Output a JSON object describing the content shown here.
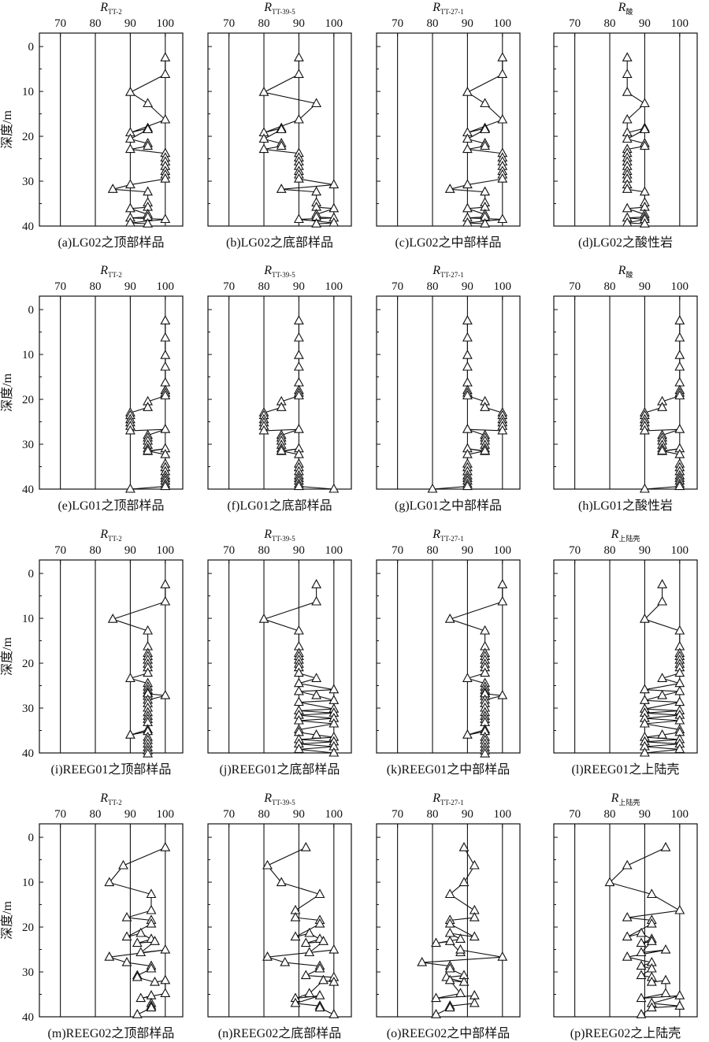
{
  "figure": {
    "y_axis_label": "深度/m",
    "x_ticks": [
      "70",
      "80",
      "90",
      "100"
    ],
    "y_ticks": [
      "0",
      "10",
      "20",
      "30",
      "40"
    ]
  },
  "chart_data": [
    {
      "type": "line",
      "row": 0,
      "col": 0,
      "title_main": "R",
      "title_sub": "TT-2",
      "caption": "(a)LG02之顶部样品",
      "xlim": [
        64,
        105
      ],
      "ylim": [
        40,
        -3
      ],
      "grid_x": [
        70,
        80,
        90,
        100
      ],
      "x": [
        100,
        100,
        90,
        95,
        100,
        90,
        95,
        95,
        90,
        95,
        95,
        90,
        100,
        100,
        100,
        100,
        100,
        100,
        100,
        90,
        85,
        95,
        95,
        95,
        90,
        95,
        95,
        90,
        100,
        90,
        95
      ],
      "y": [
        2.5,
        6.2,
        10.2,
        12.7,
        16.3,
        19.2,
        18.2,
        18.5,
        20.6,
        21.6,
        22.2,
        22.9,
        23.8,
        24.8,
        25.7,
        26.7,
        27.8,
        28.6,
        29.5,
        30.8,
        31.8,
        32.4,
        34.8,
        35.8,
        36.1,
        37.4,
        38.0,
        38.2,
        38.5,
        39.3,
        39.5
      ]
    },
    {
      "type": "line",
      "row": 0,
      "col": 1,
      "title_main": "R",
      "title_sub": "TT-39-5",
      "caption": "(b)LG02之底部样品",
      "xlim": [
        64,
        105
      ],
      "ylim": [
        40,
        -3
      ],
      "grid_x": [
        70,
        80,
        90,
        100
      ],
      "x": [
        90,
        90,
        80,
        95,
        90,
        80,
        85,
        85,
        80,
        85,
        85,
        80,
        90,
        90,
        90,
        90,
        90,
        90,
        90,
        100,
        85,
        95,
        95,
        95,
        100,
        95,
        95,
        100,
        90,
        100,
        95
      ],
      "y": [
        2.5,
        6.2,
        10.2,
        12.7,
        16.3,
        19.2,
        18.2,
        18.5,
        20.6,
        21.6,
        22.2,
        22.9,
        23.8,
        24.8,
        25.7,
        26.7,
        27.8,
        28.6,
        29.5,
        30.8,
        31.8,
        32.4,
        34.8,
        35.8,
        36.1,
        37.4,
        38.0,
        38.2,
        38.5,
        39.3,
        39.5
      ]
    },
    {
      "type": "line",
      "row": 0,
      "col": 2,
      "title_main": "R",
      "title_sub": "TT-27-1",
      "caption": "(c)LG02之中部样品",
      "xlim": [
        64,
        105
      ],
      "ylim": [
        40,
        -3
      ],
      "grid_x": [
        70,
        80,
        90,
        100
      ],
      "x": [
        100,
        100,
        90,
        95,
        100,
        90,
        95,
        95,
        90,
        95,
        95,
        90,
        100,
        100,
        100,
        100,
        100,
        100,
        100,
        90,
        85,
        95,
        95,
        95,
        90,
        95,
        95,
        90,
        100,
        90,
        95
      ],
      "y": [
        2.5,
        6.2,
        10.2,
        12.7,
        16.3,
        19.2,
        18.2,
        18.5,
        20.6,
        21.6,
        22.2,
        22.9,
        23.8,
        24.8,
        25.7,
        26.7,
        27.8,
        28.6,
        29.5,
        30.8,
        31.8,
        32.4,
        34.8,
        35.8,
        36.1,
        37.4,
        38.0,
        38.2,
        38.5,
        39.3,
        39.5
      ]
    },
    {
      "type": "line",
      "row": 0,
      "col": 3,
      "title_main": "R",
      "title_sub": "酸",
      "caption": "(d)LG02之酸性岩",
      "xlim": [
        64,
        105
      ],
      "ylim": [
        40,
        -3
      ],
      "grid_x": [
        70,
        80,
        90,
        100
      ],
      "x": [
        85,
        85,
        85,
        90,
        85,
        85,
        90,
        90,
        85,
        90,
        90,
        85,
        85,
        85,
        85,
        85,
        85,
        85,
        85,
        85,
        85,
        90,
        90,
        90,
        85,
        90,
        90,
        85,
        90,
        85,
        90
      ],
      "y": [
        2.5,
        6.2,
        10.2,
        12.7,
        16.3,
        19.2,
        18.2,
        18.5,
        20.6,
        21.6,
        22.2,
        22.9,
        23.8,
        24.8,
        25.7,
        26.7,
        27.8,
        28.6,
        29.5,
        30.8,
        31.8,
        32.4,
        34.8,
        35.8,
        36.1,
        37.4,
        38.0,
        38.2,
        38.5,
        39.3,
        39.5
      ]
    },
    {
      "type": "line",
      "row": 1,
      "col": 0,
      "title_main": "R",
      "title_sub": "TT-2",
      "caption": "(e)LG01之顶部样品",
      "xlim": [
        64,
        105
      ],
      "ylim": [
        40,
        -3
      ],
      "grid_x": [
        70,
        80,
        90,
        100
      ],
      "x": [
        100,
        100,
        100,
        100,
        100,
        100,
        100,
        100,
        95,
        95,
        90,
        90,
        90,
        90,
        90,
        90,
        100,
        95,
        95,
        95,
        95,
        95,
        95,
        100,
        95,
        100,
        100,
        100,
        100,
        100,
        100,
        100,
        100,
        100,
        90
      ],
      "y": [
        2.5,
        6.3,
        10.2,
        12.8,
        16.3,
        18.0,
        18.6,
        19.2,
        20.5,
        21.8,
        23.0,
        23.6,
        24.5,
        25.2,
        26.0,
        27.0,
        26.7,
        28.0,
        28.6,
        29.3,
        30.2,
        31.0,
        31.6,
        31.0,
        31.5,
        32.3,
        34.4,
        35.2,
        36.1,
        37.0,
        37.6,
        38.2,
        38.9,
        39.4,
        40.0
      ]
    },
    {
      "type": "line",
      "row": 1,
      "col": 1,
      "title_main": "R",
      "title_sub": "TT-39-5",
      "caption": "(f)LG01之底部样品",
      "xlim": [
        64,
        105
      ],
      "ylim": [
        40,
        -3
      ],
      "grid_x": [
        70,
        80,
        90,
        100
      ],
      "x": [
        90,
        90,
        90,
        90,
        90,
        90,
        90,
        90,
        85,
        85,
        80,
        80,
        80,
        80,
        80,
        80,
        90,
        85,
        85,
        85,
        85,
        85,
        85,
        90,
        85,
        90,
        90,
        90,
        90,
        90,
        90,
        90,
        90,
        90,
        100
      ],
      "y": [
        2.5,
        6.3,
        10.2,
        12.8,
        16.3,
        18.0,
        18.6,
        19.2,
        20.5,
        21.8,
        23.0,
        23.6,
        24.5,
        25.2,
        26.0,
        27.0,
        26.7,
        28.0,
        28.6,
        29.3,
        30.2,
        31.0,
        31.6,
        31.0,
        31.5,
        32.3,
        34.4,
        35.2,
        36.1,
        37.0,
        37.6,
        38.2,
        38.9,
        39.4,
        40.0
      ]
    },
    {
      "type": "line",
      "row": 1,
      "col": 2,
      "title_main": "R",
      "title_sub": "TT-27-1",
      "caption": "(g)LG01之中部样品",
      "xlim": [
        64,
        105
      ],
      "ylim": [
        40,
        -3
      ],
      "grid_x": [
        70,
        80,
        90,
        100
      ],
      "x": [
        90,
        90,
        90,
        90,
        90,
        90,
        90,
        90,
        95,
        95,
        100,
        100,
        100,
        100,
        100,
        100,
        90,
        95,
        95,
        95,
        95,
        95,
        95,
        90,
        95,
        90,
        90,
        90,
        90,
        90,
        90,
        90,
        90,
        90,
        80
      ],
      "y": [
        2.5,
        6.3,
        10.2,
        12.8,
        16.3,
        18.0,
        18.6,
        19.2,
        20.5,
        21.8,
        23.0,
        23.6,
        24.5,
        25.2,
        26.0,
        27.0,
        26.7,
        28.0,
        28.6,
        29.3,
        30.2,
        31.0,
        31.6,
        31.0,
        31.5,
        32.3,
        34.4,
        35.2,
        36.1,
        37.0,
        37.6,
        38.2,
        38.9,
        39.4,
        40.0
      ]
    },
    {
      "type": "line",
      "row": 1,
      "col": 3,
      "title_main": "R",
      "title_sub": "酸",
      "caption": "(h)LG01之酸性岩",
      "xlim": [
        64,
        105
      ],
      "ylim": [
        40,
        -3
      ],
      "grid_x": [
        70,
        80,
        90,
        100
      ],
      "x": [
        100,
        100,
        100,
        100,
        100,
        100,
        100,
        100,
        95,
        95,
        90,
        90,
        90,
        90,
        90,
        90,
        100,
        95,
        95,
        95,
        95,
        95,
        95,
        100,
        95,
        100,
        100,
        100,
        100,
        100,
        100,
        100,
        100,
        100,
        90
      ],
      "y": [
        2.5,
        6.3,
        10.2,
        12.8,
        16.3,
        18.0,
        18.6,
        19.2,
        20.5,
        21.8,
        23.0,
        23.6,
        24.5,
        25.2,
        26.0,
        27.0,
        26.7,
        28.0,
        28.6,
        29.3,
        30.2,
        31.0,
        31.6,
        31.0,
        31.5,
        32.3,
        34.4,
        35.2,
        36.1,
        37.0,
        37.6,
        38.2,
        38.9,
        39.4,
        40.0
      ]
    },
    {
      "type": "line",
      "row": 2,
      "col": 0,
      "title_main": "R",
      "title_sub": "TT-2",
      "caption": "(i)REEG01之顶部样品",
      "xlim": [
        64,
        105
      ],
      "ylim": [
        40,
        -3
      ],
      "grid_x": [
        70,
        80,
        90,
        100
      ],
      "x": [
        100,
        100,
        85,
        95,
        95,
        95,
        95,
        95,
        95,
        95,
        95,
        90,
        95,
        95,
        95,
        95,
        95,
        95,
        100,
        95,
        95,
        95,
        95,
        95,
        95,
        95,
        95,
        90,
        95,
        95,
        95,
        95,
        95,
        95,
        95
      ],
      "y": [
        2.5,
        6.3,
        10.2,
        12.8,
        16.3,
        17.8,
        18.5,
        19.3,
        20.2,
        21.0,
        22.2,
        23.4,
        24.5,
        25.3,
        26.0,
        26.6,
        27.4,
        26.8,
        27.2,
        28.2,
        29.0,
        30.0,
        31.0,
        31.8,
        32.5,
        33.2,
        34.8,
        36.0,
        35.2,
        36.5,
        37.2,
        38.0,
        38.8,
        39.5,
        40.2
      ]
    },
    {
      "type": "line",
      "row": 2,
      "col": 1,
      "title_main": "R",
      "title_sub": "TT-39-5",
      "caption": "(j)REEG01之底部样品",
      "xlim": [
        64,
        105
      ],
      "ylim": [
        40,
        -3
      ],
      "grid_x": [
        70,
        80,
        90,
        100
      ],
      "x": [
        95,
        95,
        80,
        90,
        90,
        90,
        90,
        90,
        90,
        90,
        90,
        95,
        90,
        100,
        90,
        95,
        100,
        90,
        100,
        90,
        100,
        90,
        100,
        90,
        100,
        90,
        90,
        95,
        100,
        90,
        100,
        90,
        100,
        90,
        100
      ],
      "y": [
        2.5,
        6.3,
        10.2,
        12.8,
        16.3,
        17.8,
        18.5,
        19.3,
        20.2,
        21.0,
        22.2,
        23.4,
        24.5,
        25.9,
        26.3,
        27.2,
        28.3,
        28.7,
        30.2,
        30.6,
        31.1,
        31.6,
        32.3,
        32.8,
        33.5,
        34.8,
        35.4,
        36.0,
        36.5,
        37.0,
        37.5,
        38.0,
        38.6,
        39.2,
        40.0
      ]
    },
    {
      "type": "line",
      "row": 2,
      "col": 2,
      "title_main": "R",
      "title_sub": "TT-27-1",
      "caption": "(k)REEG01之中部样品",
      "xlim": [
        64,
        105
      ],
      "ylim": [
        40,
        -3
      ],
      "grid_x": [
        70,
        80,
        90,
        100
      ],
      "x": [
        100,
        100,
        85,
        95,
        95,
        95,
        95,
        95,
        95,
        95,
        95,
        90,
        95,
        95,
        95,
        95,
        95,
        95,
        100,
        95,
        95,
        95,
        95,
        95,
        95,
        95,
        95,
        90,
        95,
        95,
        95,
        95,
        95,
        95,
        95
      ],
      "y": [
        2.5,
        6.3,
        10.2,
        12.8,
        16.3,
        17.8,
        18.5,
        19.3,
        20.2,
        21.0,
        22.2,
        23.4,
        24.5,
        25.3,
        26.0,
        26.6,
        27.4,
        26.8,
        27.2,
        28.2,
        29.0,
        30.0,
        31.0,
        31.8,
        32.5,
        33.2,
        34.8,
        36.0,
        35.2,
        36.5,
        37.2,
        38.0,
        38.8,
        39.5,
        40.2
      ]
    },
    {
      "type": "line",
      "row": 2,
      "col": 3,
      "title_main": "R",
      "title_sub": "上陆壳",
      "caption": "(l)REEG01之上陆壳",
      "xlim": [
        64,
        105
      ],
      "ylim": [
        40,
        -3
      ],
      "grid_x": [
        70,
        80,
        90,
        100
      ],
      "x": [
        95,
        95,
        90,
        100,
        100,
        100,
        100,
        100,
        100,
        100,
        100,
        95,
        100,
        90,
        100,
        95,
        90,
        100,
        90,
        100,
        90,
        100,
        90,
        100,
        90,
        100,
        100,
        95,
        90,
        100,
        90,
        100,
        90,
        100,
        90
      ],
      "y": [
        2.5,
        6.3,
        10.2,
        12.8,
        16.3,
        17.8,
        18.5,
        19.3,
        20.2,
        21.0,
        22.2,
        23.4,
        24.5,
        25.9,
        26.3,
        27.2,
        28.3,
        28.7,
        30.2,
        30.6,
        31.1,
        31.6,
        32.3,
        32.8,
        33.5,
        34.8,
        35.4,
        36.0,
        36.5,
        37.0,
        37.5,
        38.0,
        38.6,
        39.2,
        40.0
      ]
    },
    {
      "type": "line",
      "row": 3,
      "col": 0,
      "title_main": "R",
      "title_sub": "TT-2",
      "caption": "(m)REEG02之顶部样品",
      "xlim": [
        64,
        105
      ],
      "ylim": [
        40,
        -3
      ],
      "grid_x": [
        70,
        80,
        90,
        100
      ],
      "x": [
        100,
        88,
        84,
        96,
        96,
        89,
        96,
        96,
        89,
        93,
        96,
        92,
        97,
        93,
        100,
        84,
        89,
        96,
        96,
        92,
        92,
        97,
        100,
        100,
        93,
        96,
        96,
        96,
        96,
        92
      ],
      "y": [
        2.3,
        6.3,
        10.1,
        12.7,
        16.3,
        17.9,
        18.5,
        19.3,
        22.2,
        21.4,
        22.7,
        23.6,
        23.2,
        25.7,
        25.1,
        26.7,
        27.9,
        28.7,
        29.3,
        30.8,
        31.2,
        32.3,
        31.9,
        34.8,
        35.9,
        35.3,
        37.0,
        37.6,
        38.0,
        39.5
      ]
    },
    {
      "type": "line",
      "row": 3,
      "col": 1,
      "title_main": "R",
      "title_sub": "TT-39-5",
      "caption": "(n)REEG02之底部样品",
      "xlim": [
        64,
        105
      ],
      "ylim": [
        40,
        -3
      ],
      "grid_x": [
        70,
        80,
        90,
        100
      ],
      "x": [
        92,
        81,
        85,
        96,
        89,
        89,
        96,
        96,
        89,
        93,
        96,
        92,
        97,
        93,
        100,
        81,
        86,
        96,
        96,
        92,
        100,
        100,
        97,
        93,
        89,
        96,
        89,
        96,
        96,
        100
      ],
      "y": [
        2.3,
        6.3,
        10.1,
        12.7,
        16.3,
        17.9,
        18.5,
        19.3,
        22.2,
        21.4,
        22.7,
        23.6,
        23.2,
        25.7,
        25.1,
        26.7,
        27.9,
        28.7,
        29.3,
        30.8,
        31.2,
        32.3,
        31.9,
        34.8,
        35.9,
        35.3,
        37.0,
        37.6,
        38.0,
        39.5
      ]
    },
    {
      "type": "line",
      "row": 3,
      "col": 2,
      "title_main": "R",
      "title_sub": "TT-27-1",
      "caption": "(o)REEG02之中部样品",
      "xlim": [
        64,
        105
      ],
      "ylim": [
        40,
        -3
      ],
      "grid_x": [
        70,
        80,
        90,
        100
      ],
      "x": [
        89,
        92,
        89,
        85,
        92,
        92,
        85,
        85,
        92,
        85,
        88,
        81,
        85,
        88,
        88,
        100,
        77,
        85,
        85,
        89,
        84,
        89,
        85,
        88,
        81,
        92,
        92,
        85,
        85,
        81
      ],
      "y": [
        2.3,
        6.3,
        10.1,
        12.7,
        16.3,
        17.9,
        18.5,
        19.3,
        22.2,
        21.4,
        22.7,
        23.6,
        23.2,
        25.7,
        25.1,
        26.7,
        27.9,
        28.7,
        29.3,
        30.8,
        31.2,
        32.3,
        31.9,
        34.8,
        35.9,
        35.3,
        37.0,
        37.6,
        38.0,
        39.5
      ]
    },
    {
      "type": "line",
      "row": 3,
      "col": 3,
      "title_main": "R",
      "title_sub": "上陆壳",
      "caption": "(p)REEG02之上陆壳",
      "xlim": [
        64,
        105
      ],
      "ylim": [
        40,
        -3
      ],
      "grid_x": [
        70,
        80,
        90,
        100
      ],
      "x": [
        96,
        85,
        80,
        92,
        100,
        85,
        92,
        92,
        85,
        89,
        92,
        89,
        92,
        89,
        96,
        85,
        92,
        89,
        92,
        89,
        92,
        92,
        96,
        96,
        89,
        100,
        92,
        100,
        92,
        89
      ],
      "y": [
        2.3,
        6.3,
        10.1,
        12.7,
        16.3,
        17.9,
        18.5,
        19.3,
        22.2,
        21.4,
        22.7,
        23.6,
        23.2,
        25.7,
        25.1,
        26.7,
        27.9,
        28.7,
        29.3,
        30.8,
        31.2,
        32.3,
        31.9,
        34.8,
        35.9,
        35.3,
        37.0,
        37.6,
        38.0,
        39.5
      ]
    }
  ]
}
